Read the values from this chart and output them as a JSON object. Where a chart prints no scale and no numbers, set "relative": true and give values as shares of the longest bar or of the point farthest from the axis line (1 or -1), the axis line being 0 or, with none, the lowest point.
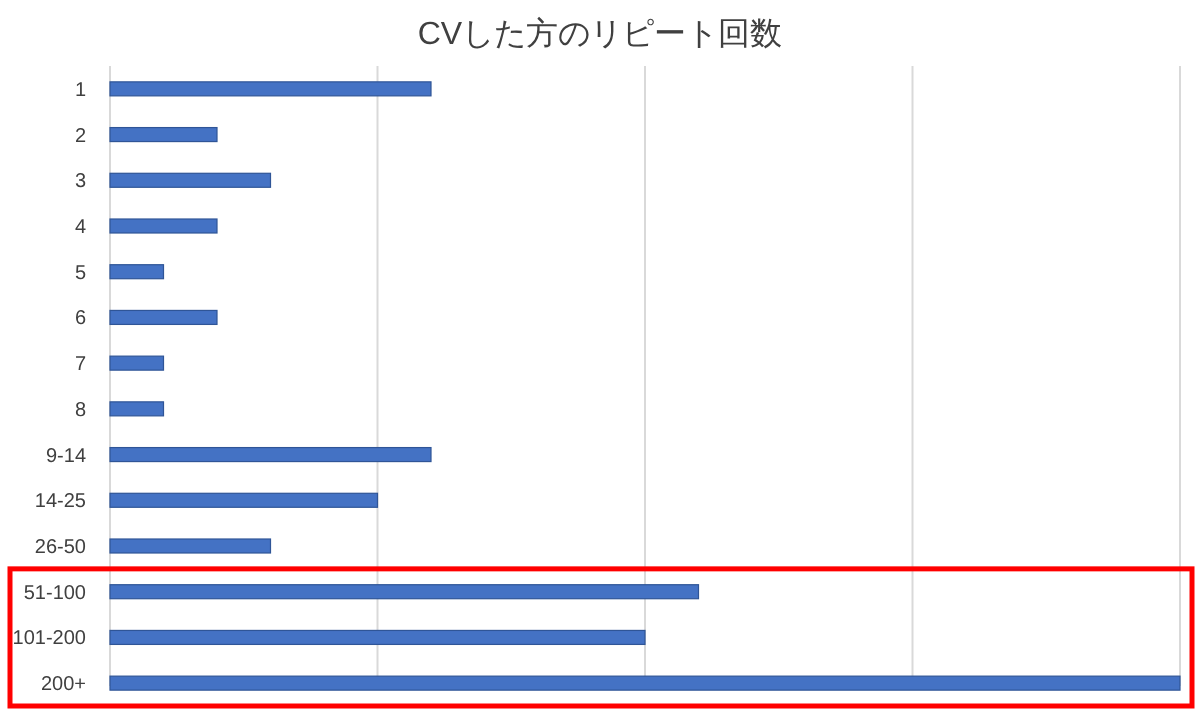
{
  "chart_data": {
    "type": "bar",
    "orientation": "horizontal",
    "relative": true,
    "title": "CVした方のリピート回数",
    "categories": [
      "1",
      "2",
      "3",
      "4",
      "5",
      "6",
      "7",
      "8",
      "9-14",
      "14-25",
      "26-50",
      "51-100",
      "101-200",
      "200+"
    ],
    "values": [
      0.3,
      0.1,
      0.15,
      0.1,
      0.05,
      0.1,
      0.05,
      0.05,
      0.3,
      0.25,
      0.15,
      0.55,
      0.5,
      1
    ],
    "color": "#4472c4",
    "grid": "x"
  }
}
